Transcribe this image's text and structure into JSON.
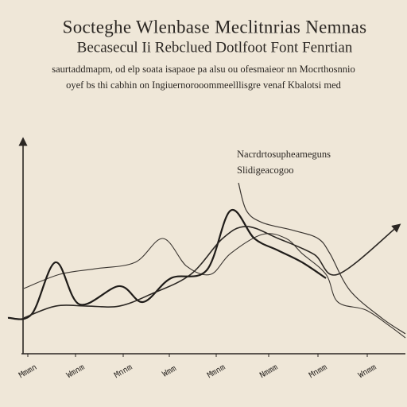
{
  "chart_data": {
    "type": "line",
    "title": "Socteghe Wlenbase Meclitnrias Nemnas",
    "subtitle": "Becasecul Ii Rebclued Dotlfoot Font Fenrtian",
    "description": [
      "saurtaddmapm, od elp soata isapaoe pa alsu ou ofesmaieor nn Mocrthosnnio",
      "oyef bs thi cabhin on Ingiuernorooommeelllisgre venaf Kbalotsi med"
    ],
    "annotation": [
      "Nacrdrtosupheameguns",
      "Slidigeacogoo"
    ],
    "xlim": [
      0,
      100
    ],
    "ylim": [
      0,
      100
    ],
    "xticks": [
      {
        "value": 5,
        "label": "Mmmn"
      },
      {
        "value": 17,
        "label": "Wmnm"
      },
      {
        "value": 29,
        "label": "Mnnm"
      },
      {
        "value": 40.6,
        "label": "Wmm"
      },
      {
        "value": 52.4,
        "label": "Mmnm"
      },
      {
        "value": 65.6,
        "label": "Nmmm"
      },
      {
        "value": 78,
        "label": "Mnmm"
      },
      {
        "value": 90.4,
        "label": "Wnmm"
      }
    ],
    "series": [
      {
        "color": "#3a3530",
        "line_width": 1.1,
        "x": [
          4,
          13,
          22,
          32,
          39,
          45,
          51,
          56,
          64,
          70,
          74,
          80,
          83,
          90,
          96,
          100
        ],
        "values": [
          30.4,
          37,
          39.6,
          42.6,
          53.7,
          40.7,
          37,
          46.7,
          55.6,
          53.7,
          46.7,
          37,
          24.1,
          20.4,
          13,
          7.4
        ]
      },
      {
        "color": "#1f1c19",
        "line_width": 2.2,
        "x": [
          0,
          6,
          12,
          18,
          28,
          34,
          41,
          50,
          56,
          62,
          68,
          74,
          80
        ],
        "values": [
          16.7,
          18.5,
          42.6,
          23,
          31.5,
          24.1,
          35.2,
          38.9,
          66.7,
          53.7,
          48.1,
          42.6,
          35.2
        ]
      },
      {
        "color": "#2b2723",
        "line_width": 1.6,
        "x": [
          4,
          12,
          20,
          28,
          36,
          46,
          54,
          60,
          68,
          77,
          83,
          98
        ],
        "values": [
          16.7,
          22.2,
          22.2,
          22.2,
          27.8,
          37,
          53.7,
          59.3,
          53.7,
          46.3,
          37,
          59.3
        ]
      },
      {
        "color": "#3a3530",
        "line_width": 1.2,
        "x": [
          58,
          60,
          64,
          72,
          78,
          81,
          86,
          94,
          100
        ],
        "values": [
          79.6,
          66.7,
          61.1,
          57.4,
          53.7,
          46.7,
          29.6,
          16.7,
          9.3
        ]
      }
    ]
  }
}
